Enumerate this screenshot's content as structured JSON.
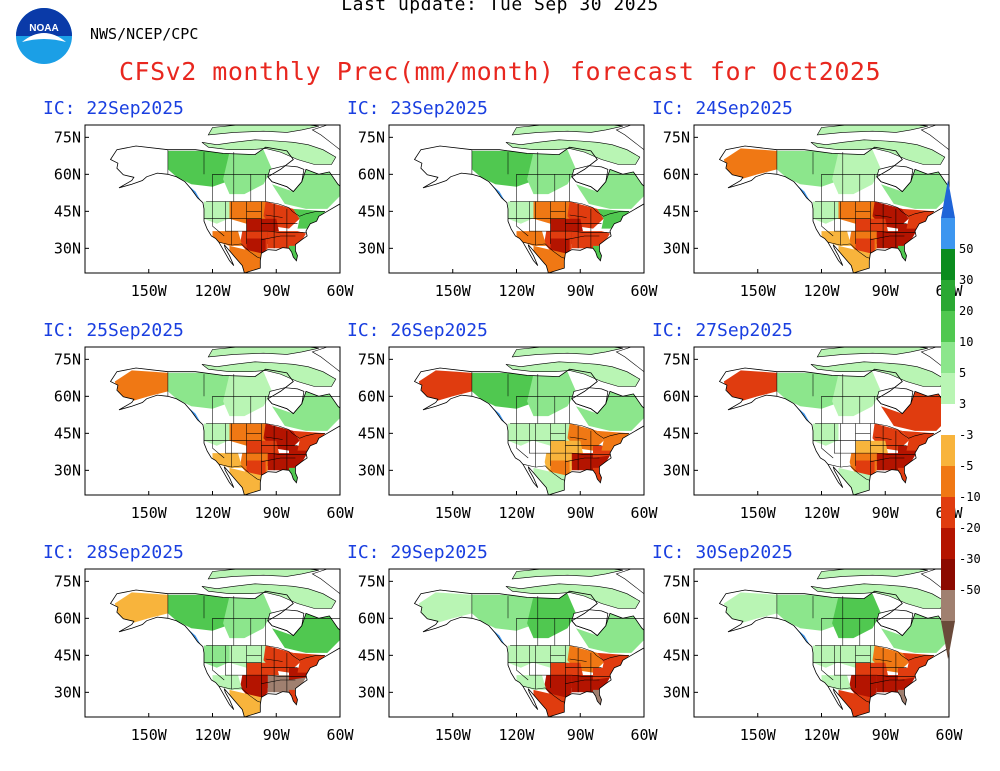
{
  "header": {
    "last_update": "Last update: Tue Sep 30 2025",
    "agency": "NWS/NCEP/CPC",
    "title": "CFSv2 monthly Prec(mm/month) forecast for Oct2025",
    "logo_text": "NOAA"
  },
  "axes": {
    "lat_labels": [
      "75N",
      "60N",
      "45N",
      "30N"
    ],
    "lon_labels": [
      "150W",
      "120W",
      "90W",
      "60W"
    ]
  },
  "panels": [
    {
      "ic": "IC: 22Sep2025",
      "pattern": "dry-south-central"
    },
    {
      "ic": "IC: 23Sep2025",
      "pattern": "dry-south-central"
    },
    {
      "ic": "IC: 24Sep2025",
      "pattern": "dry-east-alaska"
    },
    {
      "ic": "IC: 25Sep2025",
      "pattern": "dry-east-alaska"
    },
    {
      "ic": "IC: 26Sep2025",
      "pattern": "dry-southeast"
    },
    {
      "ic": "IC: 27Sep2025",
      "pattern": "dry-east"
    },
    {
      "ic": "IC: 28Sep2025",
      "pattern": "dry-east-severe"
    },
    {
      "ic": "IC: 29Sep2025",
      "pattern": "dry-southeast-severe"
    },
    {
      "ic": "IC: 30Sep2025",
      "pattern": "dry-southeast-severe"
    }
  ],
  "legend": {
    "labels": [
      "50",
      "30",
      "20",
      "10",
      "5",
      "3",
      "-3",
      "-5",
      "-10",
      "-20",
      "-30",
      "-50"
    ],
    "colors": [
      "#1e64d8",
      "#3c96f0",
      "#0a8c1e",
      "#2aa832",
      "#50c850",
      "#8ce68c",
      "#b9f5b4",
      "#ffffff",
      "#f8b43c",
      "#f07814",
      "#e03c0f",
      "#b41400",
      "#8c0a00",
      "#a08070",
      "#6a4a3a"
    ]
  },
  "colors": {
    "ocean": "#ffffff",
    "neutral_land": "#ffffff",
    "wet_light": "#b9f5b4",
    "wet": "#8ce68c",
    "wet_mid": "#50c850",
    "wet_dark": "#2aa832",
    "wet_blue": "#3c96f0",
    "dry_light": "#f8b43c",
    "dry": "#f07814",
    "dry_mid": "#e03c0f",
    "dry_dark": "#b41400",
    "dry_brown": "#a08070",
    "title_red": "#e8271f",
    "ic_blue": "#1a3fe0"
  }
}
